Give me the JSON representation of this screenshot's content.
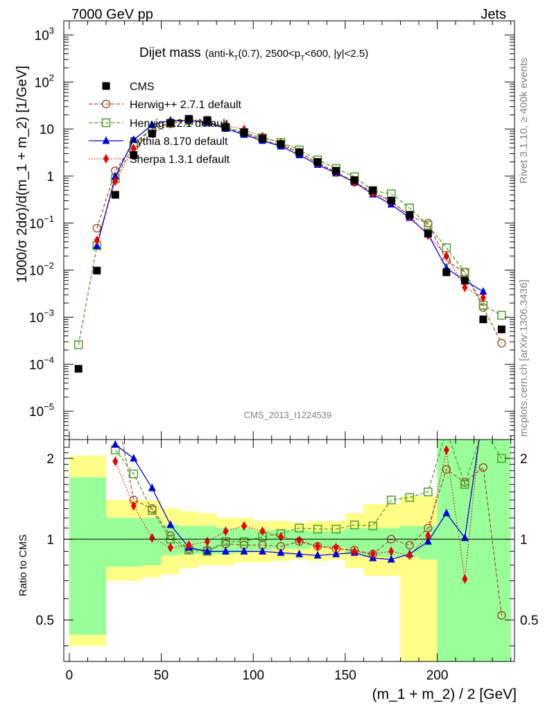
{
  "header": {
    "left": "7000 GeV pp",
    "right": "Jets"
  },
  "titles": {
    "main": "Dijet mass",
    "detail": "(anti-k",
    "sub1": "T",
    "detail2": "(0.7), 2500<p",
    "sub2": "T",
    "detail3": "<600, |y|<2.5)"
  },
  "side_labels": {
    "rivet": "Rivet 3.1.10, ≥ 400k events",
    "mcplots": "mcplots.cern.ch [arXiv:1306.3436]"
  },
  "watermark": "CMS_2013_I1224539",
  "axes": {
    "top_ylabel": "1000/σ 2dσ)/d(m_1 + m_2) [1/GeV]",
    "bottom_ylabel": "Ratio to CMS",
    "xlabel": "(m_1 + m_2) / 2 [GeV]",
    "top_yticks": [
      "10",
      "10",
      "10",
      "1",
      "10",
      "10",
      "10",
      "10",
      "10"
    ],
    "top_yexps": [
      "3",
      "2",
      "",
      "",
      "−1",
      "−2",
      "−3",
      "−4",
      "−5"
    ],
    "bottom_yticks": [
      "2",
      "1",
      "0.5"
    ],
    "xticks": [
      "0",
      "50",
      "100",
      "150",
      "200"
    ]
  },
  "legend": [
    {
      "label": "CMS",
      "color": "#000000",
      "marker": "square"
    },
    {
      "label": "Herwig++ 2.7.1 default",
      "color": "#a0522d",
      "marker": "circle-open"
    },
    {
      "label": "Herwig 7.2.1 default",
      "color": "#4f9a25",
      "marker": "square-open"
    },
    {
      "label": "Pythia 8.170 default",
      "color": "#0000dd",
      "marker": "triangle"
    },
    {
      "label": "Sherpa 1.3.1 default",
      "color": "#ee0000",
      "marker": "diamond"
    }
  ],
  "chart_data": {
    "type": "scatter",
    "x": [
      5,
      15,
      25,
      35,
      45,
      55,
      65,
      75,
      85,
      95,
      105,
      115,
      125,
      135,
      145,
      155,
      165,
      175,
      185,
      195,
      205,
      215,
      225,
      235
    ],
    "xlim": [
      -3,
      242
    ],
    "ylim": [
      2.5e-06,
      2000
    ],
    "yscale": "log",
    "ratio_ylim": [
      0.35,
      2.35
    ],
    "ratio_yscale": "log",
    "series": [
      {
        "name": "CMS",
        "values": [
          8e-05,
          0.0098,
          0.4,
          2.8,
          8,
          13.5,
          16.5,
          15.5,
          11,
          8.5,
          6.3,
          4.8,
          3.2,
          2.0,
          1.3,
          0.82,
          0.5,
          0.3,
          0.15,
          0.06,
          0.009,
          0.006,
          0.0009,
          0.00055
        ]
      },
      {
        "name": "Herwig++ 2.7.1 default",
        "values": [
          null,
          0.078,
          1.3,
          4.8,
          10.5,
          13.8,
          15.5,
          14.2,
          10.7,
          8.1,
          5.95,
          4.5,
          3.2,
          1.9,
          1.2,
          0.75,
          0.45,
          0.3,
          0.14,
          0.1,
          0.016,
          0.009,
          0.0016,
          0.00028
        ]
      },
      {
        "name": "Herwig 7.2.1 default",
        "values": [
          0.00026,
          0.033,
          0.88,
          4.5,
          9.9,
          13.2,
          15.0,
          14.0,
          10.9,
          8.4,
          6.5,
          5.2,
          3.6,
          2.2,
          1.45,
          0.97,
          0.49,
          0.42,
          0.21,
          0.09,
          0.03,
          0.009,
          0.0018,
          0.0011
        ]
      },
      {
        "name": "Pythia 8.170 default",
        "values": [
          null,
          0.033,
          0.98,
          5.9,
          12.2,
          15.3,
          15.2,
          13.8,
          10.2,
          7.6,
          5.65,
          4.3,
          2.8,
          1.75,
          1.15,
          0.74,
          0.41,
          0.25,
          0.13,
          0.058,
          0.011,
          0.006,
          0.0035,
          null
        ]
      },
      {
        "name": "Sherpa 1.3.1 default",
        "values": [
          null,
          0.043,
          0.78,
          3.8,
          8.1,
          12.8,
          15.7,
          15.3,
          11.8,
          9.8,
          6.9,
          5.0,
          3.15,
          1.9,
          1.22,
          0.73,
          0.43,
          0.29,
          0.14,
          0.055,
          0.02,
          0.0043,
          0.0026,
          null
        ]
      }
    ],
    "ratios": [
      {
        "name": "Herwig++ 2.7.1 default",
        "values": [
          null,
          null,
          3.2,
          1.4,
          1.3,
          1.03,
          0.92,
          0.91,
          0.96,
          0.95,
          0.95,
          0.94,
          0.98,
          0.94,
          0.92,
          0.91,
          0.88,
          1.0,
          0.95,
          1.1,
          1.82,
          1.63,
          1.85,
          0.52
        ]
      },
      {
        "name": "Herwig 7.2.1 default",
        "values": [
          null,
          null,
          2.15,
          1.75,
          1.28,
          1.0,
          0.91,
          0.9,
          0.98,
          0.98,
          1.02,
          1.05,
          1.1,
          1.09,
          1.09,
          1.13,
          1.12,
          1.4,
          1.43,
          1.5,
          2.55,
          1.6,
          2.6,
          2.0
        ]
      },
      {
        "name": "Pythia 8.170 default",
        "values": [
          null,
          null,
          2.25,
          2.0,
          1.55,
          1.13,
          0.93,
          0.9,
          0.9,
          0.9,
          0.9,
          0.89,
          0.88,
          0.87,
          0.88,
          0.89,
          0.85,
          0.84,
          0.88,
          0.98,
          1.25,
          1.01,
          3.0,
          null
        ]
      },
      {
        "name": "Sherpa 1.3.1 default",
        "values": [
          null,
          null,
          1.95,
          1.33,
          1.01,
          0.93,
          0.95,
          0.98,
          1.07,
          1.12,
          1.07,
          1.02,
          0.99,
          0.94,
          0.93,
          0.9,
          0.88,
          0.9,
          0.87,
          1.03,
          2.15,
          0.71,
          3.3,
          null
        ]
      }
    ],
    "bands": {
      "edges": [
        0,
        10,
        20,
        30,
        40,
        50,
        60,
        70,
        80,
        90,
        100,
        110,
        120,
        130,
        140,
        150,
        160,
        170,
        180,
        190,
        200,
        210,
        220,
        230,
        240
      ],
      "green_lo": [
        0.44,
        0.44,
        0.79,
        0.79,
        0.8,
        0.87,
        0.88,
        0.88,
        0.88,
        0.89,
        0.91,
        0.92,
        0.92,
        0.93,
        0.93,
        0.88,
        0.86,
        0.86,
        0.86,
        0.84,
        0.35,
        0.35,
        0.35,
        0.35
      ],
      "green_hi": [
        1.7,
        1.7,
        1.2,
        1.2,
        1.2,
        1.13,
        1.12,
        1.12,
        1.1,
        1.1,
        1.08,
        1.08,
        1.08,
        1.07,
        1.07,
        1.1,
        1.1,
        1.1,
        1.12,
        1.12,
        2.35,
        2.35,
        2.35,
        2.35
      ],
      "yellow_lo": [
        0.4,
        0.4,
        0.7,
        0.7,
        0.72,
        0.74,
        0.78,
        0.8,
        0.8,
        0.82,
        0.82,
        0.83,
        0.84,
        0.83,
        0.84,
        0.78,
        0.73,
        0.73,
        0.35,
        0.35,
        0.35,
        0.35,
        0.35,
        0.35
      ],
      "yellow_hi": [
        2.05,
        2.05,
        1.4,
        1.4,
        1.4,
        1.3,
        1.27,
        1.25,
        1.2,
        1.2,
        1.17,
        1.17,
        1.15,
        1.17,
        1.17,
        1.25,
        1.35,
        1.35,
        1.45,
        1.45,
        2.35,
        2.35,
        2.35,
        2.35
      ]
    },
    "band_colors": {
      "inner": "#99ff99",
      "outer": "#ffff88"
    }
  }
}
